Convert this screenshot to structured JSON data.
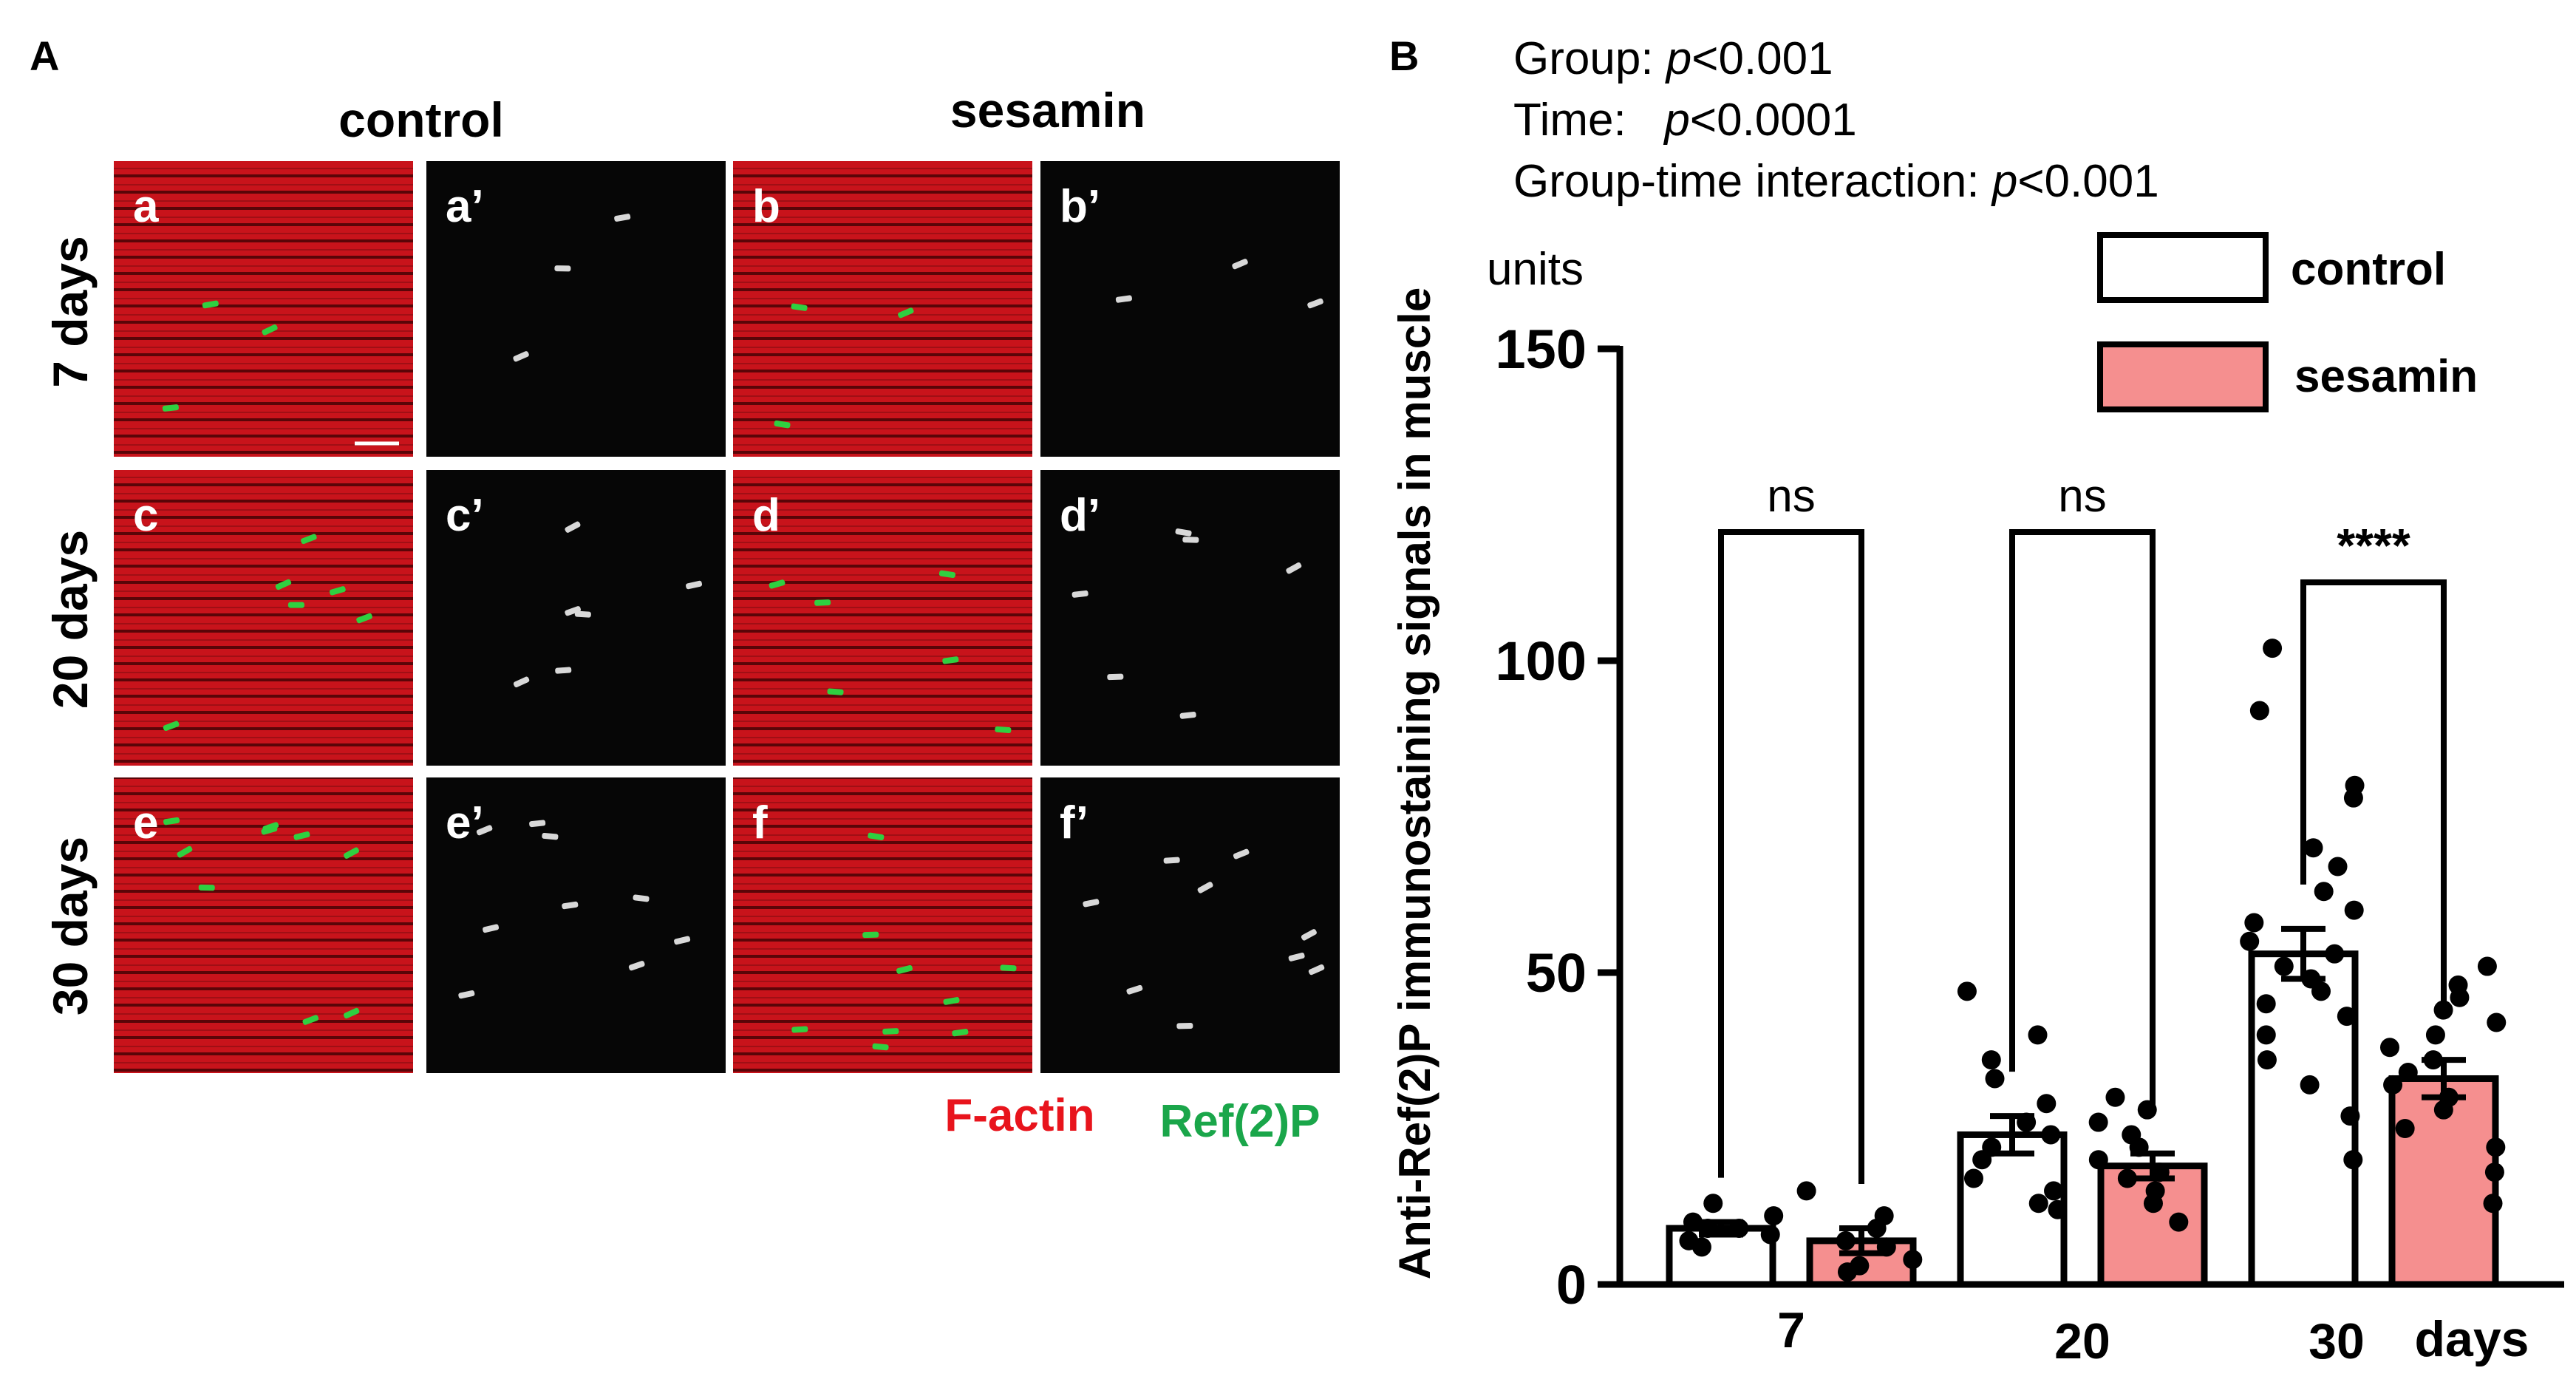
{
  "panelA": {
    "label": "A",
    "columns": [
      "control",
      "sesamin"
    ],
    "rows": [
      "7 days",
      "20 days",
      "30 days"
    ],
    "images": [
      [
        "a",
        "a’",
        "b",
        "b’"
      ],
      [
        "c",
        "c’",
        "d",
        "d’"
      ],
      [
        "e",
        "e’",
        "f",
        "f’"
      ]
    ],
    "legend": [
      {
        "text": "F-actin",
        "color": "#e8141c"
      },
      {
        "text": "Ref(2)P",
        "color": "#1aa64a"
      }
    ]
  },
  "panelB": {
    "label": "B",
    "stats": {
      "group_label": "Group: ",
      "group_p": "p",
      "group_val": "<0.001",
      "time_label": "Time:   ",
      "time_p": "p",
      "time_val": "<0.0001",
      "inter_label": "Group-time interaction: ",
      "inter_p": "p",
      "inter_val": "<0.001"
    },
    "units": "units",
    "significance": [
      "ns",
      "ns",
      "****"
    ]
  },
  "colors": {
    "control_fill": "#ffffff",
    "sesamin_fill": "#f58f8f",
    "muscle_red": "#c8131b",
    "puncta_green": "#2fd040"
  },
  "chart_data": {
    "type": "bar",
    "categories": [
      "7",
      "20",
      "30"
    ],
    "xlabel_suffix": "days",
    "ylabel": "Anti-Ref(2)P immunostaining signals in muscle",
    "yticks": [
      0,
      50,
      100,
      150
    ],
    "ylim": [
      0,
      150
    ],
    "legend_position": "top-right",
    "series": [
      {
        "name": "control",
        "values": [
          9,
          24,
          53
        ],
        "sem": [
          1,
          3,
          4
        ],
        "points": [
          [
            6,
            7,
            8,
            9,
            9,
            10,
            11,
            13
          ],
          [
            12,
            13,
            15,
            17,
            20,
            22,
            24,
            26,
            29,
            33,
            36,
            40,
            47
          ],
          [
            20,
            27,
            32,
            36,
            40,
            43,
            45,
            47,
            49,
            51,
            53,
            55,
            58,
            60,
            63,
            67,
            70,
            78,
            80,
            92,
            102
          ]
        ]
      },
      {
        "name": "sesamin",
        "values": [
          7,
          19,
          33
        ],
        "sem": [
          2,
          2,
          3
        ],
        "points": [
          [
            2,
            3,
            4,
            6,
            7,
            9,
            11,
            15
          ],
          [
            10,
            13,
            15,
            17,
            18,
            20,
            22,
            24,
            26,
            28,
            30
          ],
          [
            13,
            18,
            22,
            25,
            28,
            30,
            32,
            34,
            36,
            38,
            40,
            42,
            44,
            46,
            48,
            51
          ]
        ]
      }
    ]
  }
}
